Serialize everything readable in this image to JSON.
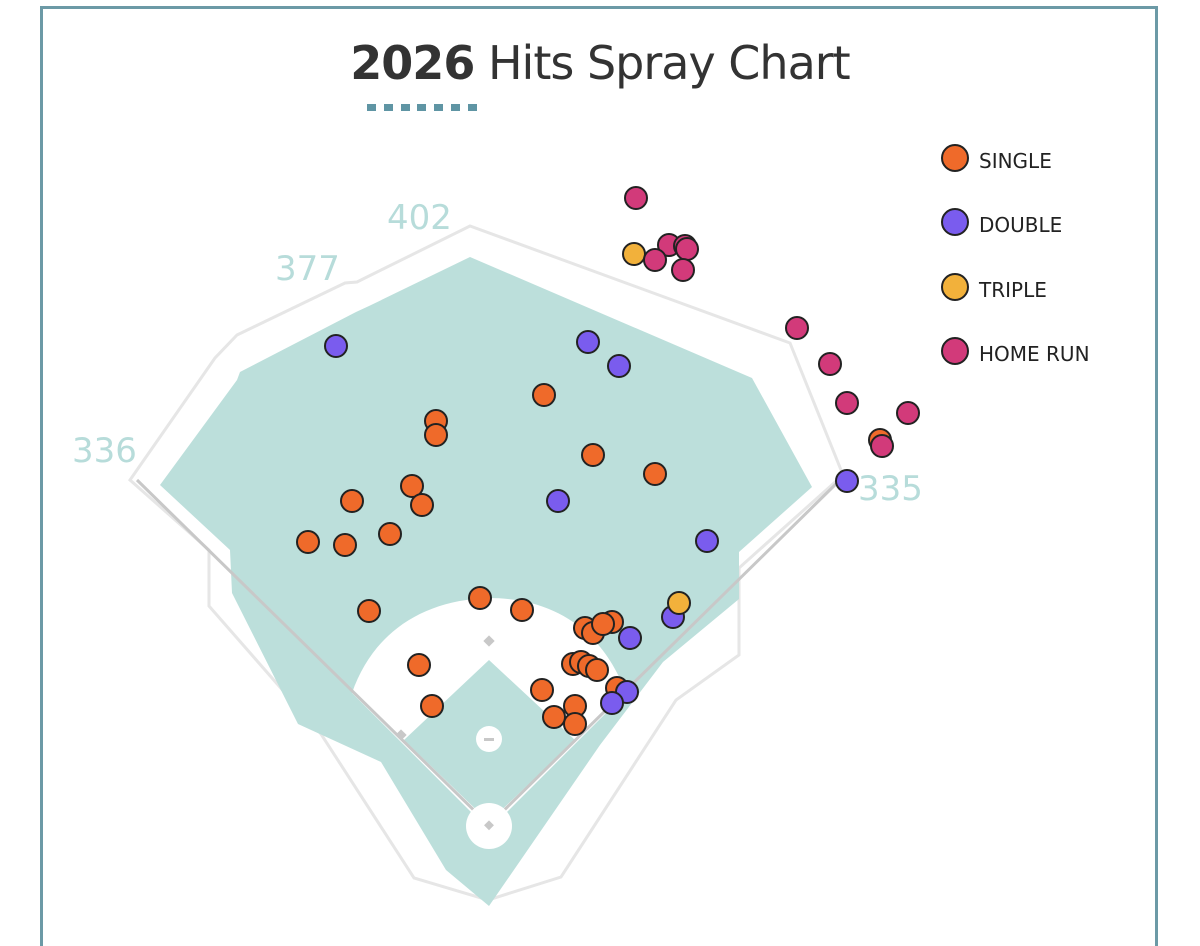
{
  "title": {
    "year": "2026",
    "text": "Hits Spray Chart"
  },
  "colors": {
    "frame": "#6c9aa6",
    "grass": "#bcdfdb",
    "title_underline": "#5f95a4",
    "distance_label": "#b7dcda",
    "single": "#ef6a2a",
    "double": "#7a5cee",
    "triple": "#f2b13b",
    "home_run": "#d23a7a"
  },
  "chart_data": {
    "type": "scatter",
    "title": "2026 Hits Spray Chart",
    "background": "baseball field diagram",
    "fence_distances": [
      {
        "label": "336",
        "position": "left field line"
      },
      {
        "label": "377",
        "position": "left-center"
      },
      {
        "label": "402",
        "position": "center field"
      },
      {
        "label": "335",
        "position": "right field line"
      }
    ],
    "legend": {
      "placement": "top-right",
      "entries": [
        {
          "key": "single",
          "label": "SINGLE"
        },
        {
          "key": "double",
          "label": "DOUBLE"
        },
        {
          "key": "triple",
          "label": "TRIPLE"
        },
        {
          "key": "home_run",
          "label": "HOME RUN"
        }
      ]
    },
    "series": [
      {
        "name": "SINGLE",
        "key": "single",
        "points": [
          [
            436,
            421
          ],
          [
            436,
            435
          ],
          [
            544,
            395
          ],
          [
            593,
            455
          ],
          [
            655,
            474
          ],
          [
            412,
            486
          ],
          [
            422,
            505
          ],
          [
            352,
            501
          ],
          [
            308,
            542
          ],
          [
            345,
            545
          ],
          [
            390,
            534
          ],
          [
            369,
            611
          ],
          [
            480,
            598
          ],
          [
            522,
            610
          ],
          [
            585,
            628
          ],
          [
            593,
            633
          ],
          [
            612,
            622
          ],
          [
            603,
            624
          ],
          [
            419,
            665
          ],
          [
            573,
            664
          ],
          [
            581,
            662
          ],
          [
            589,
            666
          ],
          [
            597,
            670
          ],
          [
            542,
            690
          ],
          [
            432,
            706
          ],
          [
            617,
            688
          ],
          [
            554,
            717
          ],
          [
            575,
            706
          ],
          [
            575,
            724
          ],
          [
            880,
            440
          ]
        ]
      },
      {
        "name": "DOUBLE",
        "key": "double",
        "points": [
          [
            336,
            346
          ],
          [
            588,
            342
          ],
          [
            619,
            366
          ],
          [
            558,
            501
          ],
          [
            707,
            541
          ],
          [
            847,
            481
          ],
          [
            673,
            617
          ],
          [
            630,
            638
          ],
          [
            627,
            692
          ],
          [
            612,
            703
          ]
        ]
      },
      {
        "name": "TRIPLE",
        "key": "triple",
        "points": [
          [
            634,
            254
          ],
          [
            679,
            603
          ]
        ]
      },
      {
        "name": "HOME RUN",
        "key": "home_run",
        "points": [
          [
            636,
            198
          ],
          [
            669,
            245
          ],
          [
            685,
            246
          ],
          [
            687,
            249
          ],
          [
            655,
            260
          ],
          [
            683,
            270
          ],
          [
            797,
            328
          ],
          [
            830,
            364
          ],
          [
            847,
            403
          ],
          [
            908,
            413
          ],
          [
            882,
            446
          ]
        ]
      }
    ]
  }
}
